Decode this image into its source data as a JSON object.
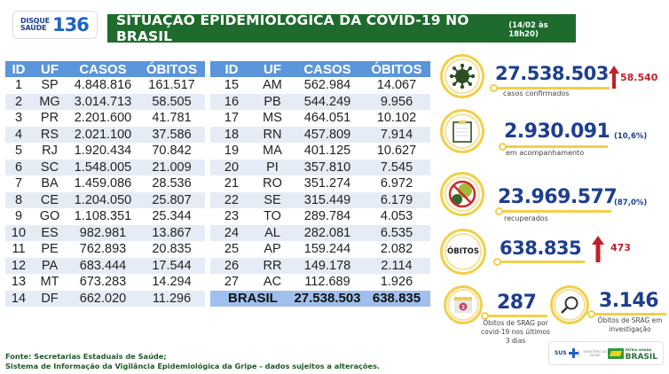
{
  "header": {
    "logo": {
      "line1": "DISQUE",
      "line2": "SAÚDE",
      "number": "136"
    },
    "title": "SITUAÇÃO EPIDEMIOLÓGICA DA COVID-19 NO BRASIL",
    "date": "(14/02 às 18h20)"
  },
  "table": {
    "columns": [
      "ID",
      "UF",
      "CASOS",
      "ÓBITOS"
    ],
    "left_rows": [
      [
        "1",
        "SP",
        "4.848.816",
        "161.517"
      ],
      [
        "2",
        "MG",
        "3.014.713",
        "58.505"
      ],
      [
        "3",
        "PR",
        "2.201.600",
        "41.781"
      ],
      [
        "4",
        "RS",
        "2.021.100",
        "37.586"
      ],
      [
        "5",
        "RJ",
        "1.920.434",
        "70.842"
      ],
      [
        "6",
        "SC",
        "1.548.005",
        "21.009"
      ],
      [
        "7",
        "BA",
        "1.459.086",
        "28.536"
      ],
      [
        "8",
        "CE",
        "1.204.050",
        "25.807"
      ],
      [
        "9",
        "GO",
        "1.108.351",
        "25.344"
      ],
      [
        "10",
        "ES",
        "982.981",
        "13.867"
      ],
      [
        "11",
        "PE",
        "762.893",
        "20.835"
      ],
      [
        "12",
        "PA",
        "683.444",
        "17.544"
      ],
      [
        "13",
        "MT",
        "673.283",
        "14.294"
      ],
      [
        "14",
        "DF",
        "662.020",
        "11.296"
      ]
    ],
    "right_rows": [
      [
        "15",
        "AM",
        "562.984",
        "14.067"
      ],
      [
        "16",
        "PB",
        "544.249",
        "9.956"
      ],
      [
        "17",
        "MS",
        "464.051",
        "10.102"
      ],
      [
        "18",
        "RN",
        "457.809",
        "7.914"
      ],
      [
        "19",
        "MA",
        "401.125",
        "10.627"
      ],
      [
        "20",
        "PI",
        "357.810",
        "7.545"
      ],
      [
        "21",
        "RO",
        "351.274",
        "6.972"
      ],
      [
        "22",
        "SE",
        "315.449",
        "6.179"
      ],
      [
        "23",
        "TO",
        "289.784",
        "4.053"
      ],
      [
        "24",
        "AL",
        "282.081",
        "6.535"
      ],
      [
        "25",
        "AP",
        "159.244",
        "2.082"
      ],
      [
        "26",
        "RR",
        "149.178",
        "2.114"
      ],
      [
        "27",
        "AC",
        "112.689",
        "1.926"
      ]
    ],
    "total": {
      "label": "BRASIL",
      "casos": "27.538.503",
      "obitos": "638.835"
    }
  },
  "stats": {
    "confirmados": {
      "value": "27.538.503",
      "increase": "58.540",
      "label": "casos confirmados",
      "icon": "virus-icon"
    },
    "acompanhamento": {
      "value": "2.930.091",
      "pct": "(10,6%)",
      "label": "em acompanhamento",
      "icon": "clipboard-icon"
    },
    "recuperados": {
      "value": "23.969.577",
      "pct": "(87,0%)",
      "label": "recuperados",
      "icon": "no-virus-icon"
    },
    "obitos": {
      "badge": "ÓBITOS",
      "value": "638.835",
      "increase": "473"
    },
    "srag_3dias": {
      "value": "287",
      "calendar_num": "3",
      "label_lines": [
        "Óbitos de SRAG por",
        "covid-19 nos últimos",
        "3 dias"
      ]
    },
    "srag_investigacao": {
      "value": "3.146",
      "label_lines": [
        "Óbitos de SRAG em",
        "investigação"
      ]
    }
  },
  "footer": {
    "line1": "Fonte: Secretarias Estaduais de Saúde;",
    "line2": "Sistema de Informação da Vigilância Epidemiológica da Gripe - dados sujeitos a alterações."
  },
  "gov_logos": {
    "sus": "SUS",
    "ministerio": "MINISTÉRIO DA SAÚDE",
    "patria": "PÁTRIA AMADA",
    "brasil": "BRASIL",
    "govfed": "GOVERNO FEDERAL"
  },
  "colors": {
    "green": "#1e6b2d",
    "blue_header": "#5b95db",
    "navy": "#1d3f8f",
    "red": "#c0202a",
    "gold": "#f2cf4a"
  }
}
